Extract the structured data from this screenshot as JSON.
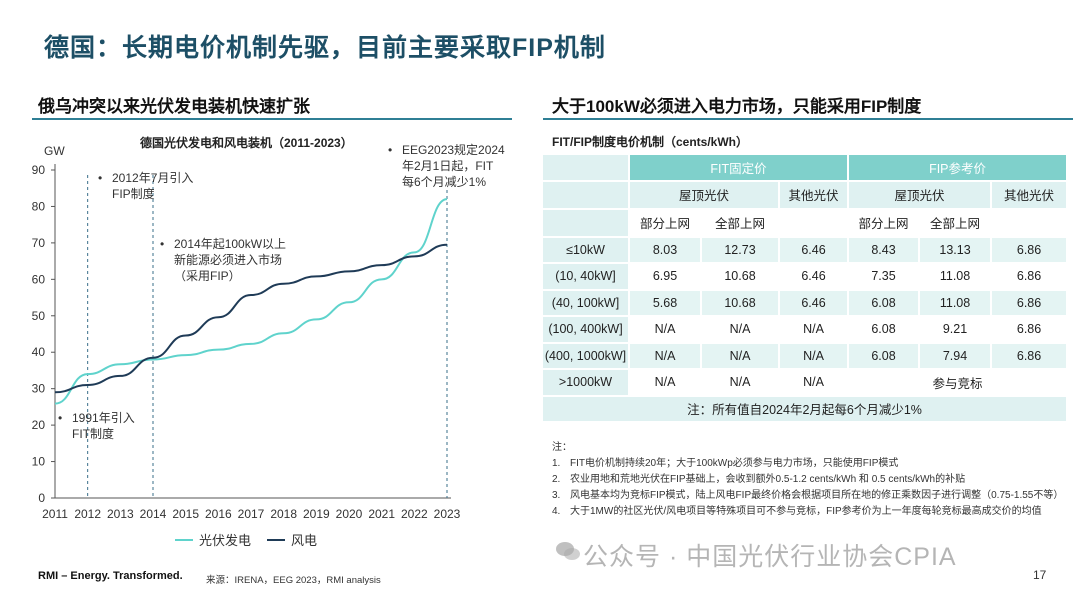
{
  "page_title": "德国：长期电价机制先驱，目前主要采取FIP机制",
  "left_section_title": "俄乌冲突以来光伏发电装机快速扩张",
  "right_section_title": "大于100kW必须进入电力市场，只能采用FIP制度",
  "chart_data": {
    "type": "line",
    "title": "德国光伏发电和风电装机（2011-2023）",
    "ylabel": "GW",
    "xlabel": "",
    "x": [
      "2011",
      "2012",
      "2013",
      "2014",
      "2015",
      "2016",
      "2017",
      "2018",
      "2019",
      "2020",
      "2021",
      "2022",
      "2023"
    ],
    "ylim": [
      0,
      90
    ],
    "yticks": [
      "0",
      "10",
      "20",
      "30",
      "40",
      "50",
      "60",
      "70",
      "80",
      "90"
    ],
    "series": [
      {
        "name": "光伏发电",
        "color": "#5fd3cc",
        "values": [
          25.9,
          34.0,
          36.7,
          38.0,
          39.2,
          40.7,
          42.3,
          45.2,
          49.0,
          53.7,
          60.0,
          67.4,
          82.0
        ]
      },
      {
        "name": "风电",
        "color": "#1f3b57",
        "values": [
          29.0,
          31.0,
          33.5,
          38.5,
          44.6,
          49.6,
          55.7,
          58.8,
          60.8,
          62.2,
          63.9,
          66.3,
          69.5
        ]
      }
    ],
    "legend": [
      "光伏发电",
      "风电"
    ],
    "annotations": [
      {
        "year": "2012",
        "text_lines": [
          "2012年7月引入",
          "FIP制度"
        ]
      },
      {
        "year": "2014",
        "text_lines": [
          "2014年起100kW以上",
          "新能源必须进入市场",
          "（采用FIP）"
        ]
      },
      {
        "year": "2023",
        "text_lines": [
          "EEG2023规定2024",
          "年2月1日起，FIT",
          "每6个月减少1%"
        ]
      },
      {
        "year": "2012",
        "text_lines": [
          "1991年引入",
          "FIT制度"
        ]
      }
    ]
  },
  "table": {
    "title": "FIT/FIP制度电价机制（cents/kWh）",
    "group_headers": [
      "FIT固定价",
      "FIP参考价"
    ],
    "sub_headers": [
      "屋顶光伏",
      "其他光伏",
      "屋顶光伏",
      "其他光伏"
    ],
    "sub_sub_headers": [
      "部分上网",
      "全部上网",
      "部分上网",
      "全部上网"
    ],
    "rows": [
      {
        "label": "≤10kW",
        "cells": [
          "8.03",
          "12.73",
          "6.46",
          "8.43",
          "13.13",
          "6.86"
        ]
      },
      {
        "label": "(10, 40kW]",
        "cells": [
          "6.95",
          "10.68",
          "6.46",
          "7.35",
          "11.08",
          "6.86"
        ]
      },
      {
        "label": "(40, 100kW]",
        "cells": [
          "5.68",
          "10.68",
          "6.46",
          "6.08",
          "11.08",
          "6.86"
        ]
      },
      {
        "label": "(100, 400kW]",
        "cells": [
          "N/A",
          "N/A",
          "N/A",
          "6.08",
          "9.21",
          "6.86"
        ]
      },
      {
        "label": "(400, 1000kW]",
        "cells": [
          "N/A",
          "N/A",
          "N/A",
          "6.08",
          "7.94",
          "6.86"
        ]
      },
      {
        "label": ">1000kW",
        "cells": [
          "N/A",
          "N/A",
          "N/A"
        ],
        "merged": "参与竞标"
      }
    ],
    "note": "注：所有值自2024年2月起每6个月减少1%"
  },
  "notes": {
    "heading": "注：",
    "items": [
      {
        "num": "1.",
        "text": "FIT电价机制持续20年；大于100kWp必须参与电力市场，只能使用FIP模式"
      },
      {
        "num": "2.",
        "text": "农业用地和荒地光伏在FIP基础上，会收到额外0.5-1.2 cents/kWh 和 0.5 cents/kWh的补贴"
      },
      {
        "num": "3.",
        "text": "风电基本均为竞标FIP模式，陆上风电FIP最终价格会根据项目所在地的修正乘数因子进行调整（0.75-1.55不等）"
      },
      {
        "num": "4.",
        "text": "大于1MW的社区光伏/风电项目等特殊项目可不参与竞标，FIP参考价为上一年度每轮竞标最高成交价的均值"
      }
    ]
  },
  "footer": {
    "brand": "RMI – Energy. Transformed.",
    "source": "来源：IRENA，EEG 2023，RMI analysis",
    "page": "17",
    "watermark": "公众号 · 中国光伏行业协会CPIA"
  }
}
